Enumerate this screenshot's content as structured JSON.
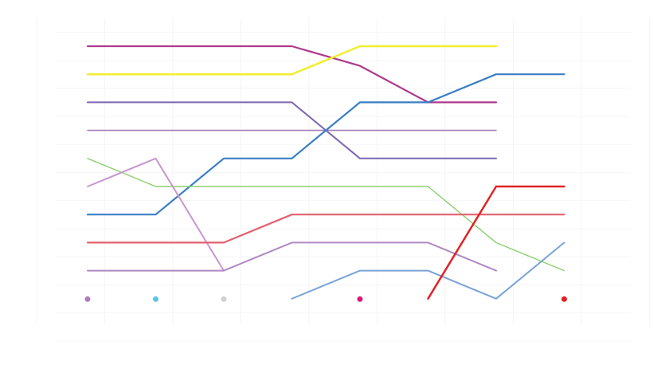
{
  "chart_data": {
    "type": "line",
    "subtype": "bump-chart",
    "title": "",
    "xlabel": "",
    "ylabel": "",
    "x": [
      1,
      2,
      3,
      4,
      5,
      6,
      7,
      8
    ],
    "ylim": [
      1,
      10
    ],
    "y_reversed": true,
    "grid": true,
    "legend": "none",
    "series": [
      {
        "color": "#b03a8c",
        "width": 2.2,
        "values": [
          1,
          1,
          1,
          1,
          1.7,
          3,
          3,
          null
        ]
      },
      {
        "color": "#f2ee2e",
        "width": 2.5,
        "values": [
          2,
          2,
          2,
          2,
          1,
          1,
          1,
          null
        ]
      },
      {
        "color": "#7b68b0",
        "width": 2.0,
        "values": [
          3,
          3,
          3,
          3,
          5,
          5,
          5,
          null
        ]
      },
      {
        "color": "#a37fb8",
        "width": 1.6,
        "values": [
          4,
          4,
          4,
          4,
          4,
          4,
          4,
          null
        ]
      },
      {
        "color": "#3a7fc4",
        "width": 2.2,
        "values": [
          7,
          7,
          5,
          5,
          3,
          3,
          2,
          2
        ]
      },
      {
        "color": "#8bcf6e",
        "width": 1.4,
        "values": [
          5,
          6,
          6,
          6,
          6,
          6,
          8,
          9
        ]
      },
      {
        "color": "#c896cf",
        "width": 2.0,
        "values": [
          6,
          5,
          9,
          null,
          null,
          null,
          null,
          null
        ]
      },
      {
        "color": "#e3606e",
        "width": 2.2,
        "values": [
          8,
          8,
          8,
          7,
          7,
          7,
          7,
          7
        ]
      },
      {
        "color": "#b089c4",
        "width": 2.0,
        "values": [
          9,
          9,
          9,
          8,
          8,
          8,
          9,
          null
        ]
      },
      {
        "color": "#7aa3d8",
        "width": 2.0,
        "values": [
          null,
          null,
          null,
          10,
          9,
          9,
          10,
          8
        ]
      },
      {
        "color": "#e02424",
        "width": 2.5,
        "values": [
          null,
          null,
          null,
          null,
          null,
          10,
          6,
          6
        ]
      }
    ],
    "markers": [
      {
        "x": 1,
        "y": 10,
        "color": "#b07ac0"
      },
      {
        "x": 2,
        "y": 10,
        "color": "#5bc5e6"
      },
      {
        "x": 3,
        "y": 10,
        "color": "#d0d0d0"
      },
      {
        "x": 5,
        "y": 10,
        "color": "#e0157a"
      },
      {
        "x": 8,
        "y": 10,
        "color": "#e02424"
      }
    ]
  }
}
